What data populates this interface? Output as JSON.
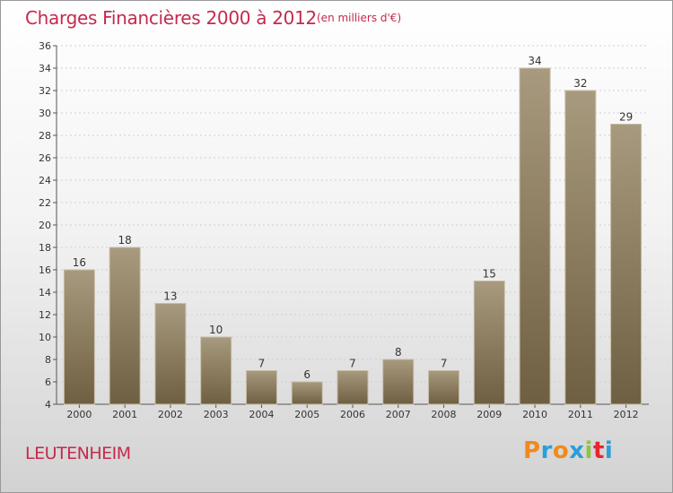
{
  "header": {
    "title": "Charges Financières 2000 à 2012",
    "subtitle": "(en milliers d'€)"
  },
  "footer": {
    "town": "LEUTENHEIM",
    "logo_letters": [
      "P",
      "r",
      "o",
      "x",
      "i",
      "t",
      "i"
    ]
  },
  "colors": {
    "accent": "#c42a4d",
    "bar_top": "#a89a7e",
    "bar_bottom": "#6f5f42",
    "logo": [
      "#f08a1c",
      "#2c9ed8",
      "#f08a1c",
      "#2c9ed8",
      "#8cc63e",
      "#e9262d",
      "#2c9ed8"
    ]
  },
  "chart_data": {
    "type": "bar",
    "title": "Charges Financières 2000 à 2012",
    "subtitle": "(en milliers d'€)",
    "categories": [
      "2000",
      "2001",
      "2002",
      "2003",
      "2004",
      "2005",
      "2006",
      "2007",
      "2008",
      "2009",
      "2010",
      "2011",
      "2012"
    ],
    "values": [
      16,
      18,
      13,
      10,
      7,
      6,
      7,
      8,
      7,
      15,
      34,
      32,
      29
    ],
    "ylim": [
      4,
      36
    ],
    "yticks": [
      4,
      6,
      8,
      10,
      12,
      14,
      16,
      18,
      20,
      22,
      24,
      26,
      28,
      30,
      32,
      34,
      36
    ],
    "grid": true,
    "data_labels": true
  }
}
